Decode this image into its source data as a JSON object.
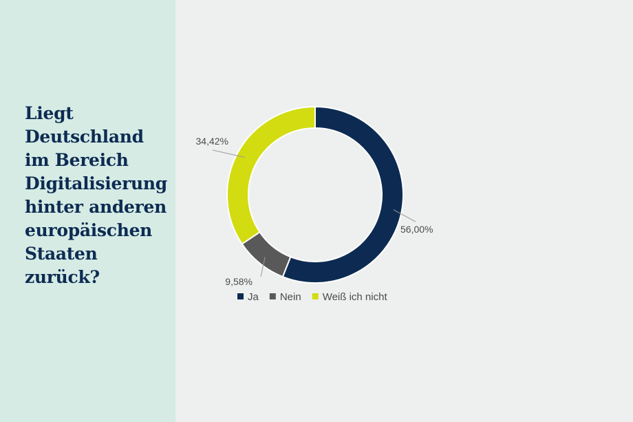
{
  "question": "Liegt Deutschland im Bereich Digitalisierung hinter anderen europäischen Staaten zurück?",
  "chart_data": {
    "type": "pie",
    "variant": "donut",
    "title": "",
    "slices": [
      {
        "name": "Ja",
        "value": 56.0,
        "label": "56,00%",
        "color": "#0d2b52"
      },
      {
        "name": "Nein",
        "value": 9.58,
        "label": "9,58%",
        "color": "#595959"
      },
      {
        "name": "Weiß ich nicht",
        "value": 34.42,
        "label": "34,42%",
        "color": "#d2dc10"
      }
    ],
    "legend_position": "bottom"
  }
}
